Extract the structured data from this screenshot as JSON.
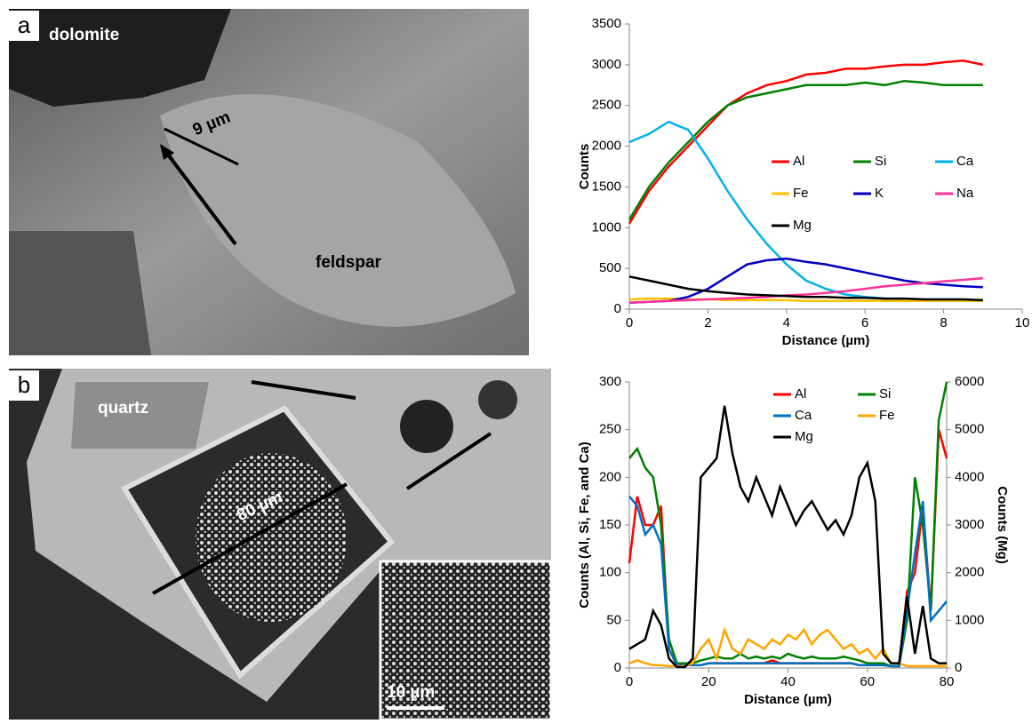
{
  "micrographs": [
    {
      "label": "a",
      "annotations": [
        "dolomite",
        "9 µm",
        "feldspar"
      ]
    },
    {
      "label": "b",
      "annotations": [
        "quartz",
        "80 µm",
        "10 µm"
      ]
    }
  ],
  "chart_data": [
    {
      "type": "line",
      "xlabel": "Distance (µm)",
      "ylabel": "Counts",
      "xlim": [
        0,
        10
      ],
      "xticks": [
        0,
        2,
        4,
        6,
        8,
        10
      ],
      "ylim": [
        0,
        3500
      ],
      "yticks": [
        0,
        500,
        1000,
        1500,
        2000,
        2500,
        3000,
        3500
      ],
      "legend_columns": 3,
      "x": [
        0,
        0.5,
        1,
        1.5,
        2,
        2.5,
        3,
        3.5,
        4,
        4.5,
        5,
        5.5,
        6,
        6.5,
        7,
        7.5,
        8,
        8.5,
        9
      ],
      "series": [
        {
          "name": "Al",
          "color": "#ff0000",
          "values": [
            1050,
            1450,
            1750,
            2000,
            2250,
            2500,
            2650,
            2750,
            2800,
            2880,
            2900,
            2950,
            2950,
            2980,
            3000,
            3000,
            3030,
            3050,
            3000
          ]
        },
        {
          "name": "Si",
          "color": "#008000",
          "values": [
            1100,
            1500,
            1800,
            2050,
            2300,
            2500,
            2600,
            2650,
            2700,
            2750,
            2750,
            2750,
            2780,
            2750,
            2800,
            2780,
            2750,
            2750,
            2750
          ]
        },
        {
          "name": "Ca",
          "color": "#00b0f0",
          "values": [
            2050,
            2150,
            2300,
            2200,
            1850,
            1450,
            1100,
            800,
            550,
            350,
            250,
            180,
            150,
            130,
            120,
            110,
            100,
            100,
            100
          ]
        },
        {
          "name": "Fe",
          "color": "#ffc000",
          "values": [
            120,
            130,
            130,
            120,
            120,
            110,
            110,
            110,
            110,
            100,
            100,
            100,
            100,
            100,
            100,
            100,
            100,
            100,
            100
          ]
        },
        {
          "name": "K",
          "color": "#0000c0",
          "values": [
            80,
            90,
            100,
            150,
            250,
            400,
            550,
            600,
            620,
            580,
            550,
            500,
            450,
            400,
            350,
            320,
            300,
            280,
            270
          ]
        },
        {
          "name": "Na",
          "color": "#ff3399",
          "values": [
            80,
            90,
            100,
            110,
            120,
            130,
            140,
            150,
            170,
            180,
            200,
            220,
            250,
            280,
            300,
            320,
            340,
            360,
            380
          ]
        },
        {
          "name": "Mg",
          "color": "#000000",
          "values": [
            400,
            350,
            300,
            250,
            220,
            200,
            180,
            170,
            160,
            150,
            150,
            140,
            140,
            130,
            130,
            120,
            120,
            120,
            110
          ]
        }
      ]
    },
    {
      "type": "line",
      "xlabel": "Distance (µm)",
      "ylabel": "Counts (Al, Si, Fe, and Ca)",
      "y2label": "Counts (Mg)",
      "xlim": [
        0,
        80
      ],
      "xticks": [
        0,
        20,
        40,
        60,
        80
      ],
      "ylim": [
        0,
        300
      ],
      "yticks": [
        0,
        50,
        100,
        150,
        200,
        250,
        300
      ],
      "y2lim": [
        0,
        6000
      ],
      "y2ticks": [
        0,
        1000,
        2000,
        3000,
        4000,
        5000,
        6000
      ],
      "legend_columns": 2,
      "x": [
        0,
        2,
        4,
        6,
        8,
        10,
        12,
        14,
        16,
        18,
        20,
        22,
        24,
        26,
        28,
        30,
        32,
        34,
        36,
        38,
        40,
        42,
        44,
        46,
        48,
        50,
        52,
        54,
        56,
        58,
        60,
        62,
        64,
        66,
        68,
        70,
        72,
        74,
        76,
        78,
        80
      ],
      "series": [
        {
          "name": "Al",
          "color": "#ff0000",
          "values": [
            110,
            180,
            150,
            150,
            170,
            20,
            3,
            3,
            3,
            3,
            5,
            5,
            5,
            5,
            5,
            5,
            5,
            5,
            8,
            5,
            5,
            5,
            5,
            5,
            5,
            5,
            5,
            5,
            5,
            3,
            3,
            3,
            3,
            2,
            2,
            80,
            100,
            170,
            60,
            250,
            220
          ]
        },
        {
          "name": "Si",
          "color": "#008000",
          "values": [
            220,
            230,
            210,
            200,
            150,
            30,
            5,
            5,
            5,
            8,
            10,
            12,
            10,
            10,
            15,
            10,
            12,
            10,
            12,
            10,
            15,
            12,
            10,
            12,
            10,
            10,
            10,
            12,
            10,
            8,
            5,
            5,
            5,
            2,
            2,
            50,
            200,
            150,
            60,
            260,
            300
          ]
        },
        {
          "name": "Ca",
          "color": "#0070c0",
          "values": [
            180,
            170,
            140,
            150,
            130,
            20,
            3,
            3,
            3,
            3,
            5,
            5,
            5,
            5,
            5,
            5,
            5,
            5,
            5,
            5,
            5,
            5,
            5,
            5,
            5,
            5,
            5,
            5,
            5,
            3,
            3,
            3,
            3,
            2,
            2,
            60,
            120,
            175,
            50,
            60,
            70
          ]
        },
        {
          "name": "Fe",
          "color": "#ffa500",
          "values": [
            5,
            8,
            5,
            3,
            3,
            2,
            2,
            2,
            5,
            20,
            30,
            10,
            40,
            20,
            15,
            30,
            25,
            20,
            30,
            25,
            35,
            30,
            40,
            25,
            35,
            40,
            30,
            20,
            25,
            15,
            20,
            10,
            20,
            5,
            5,
            2,
            2,
            2,
            2,
            2,
            2
          ]
        },
        {
          "name": "Mg",
          "color": "#000000",
          "axis": "y2",
          "values": [
            400,
            500,
            600,
            1200,
            900,
            200,
            20,
            20,
            200,
            4000,
            4200,
            4400,
            5500,
            4500,
            3800,
            3500,
            4000,
            3600,
            3200,
            3800,
            3400,
            3000,
            3300,
            3500,
            3200,
            2900,
            3100,
            2800,
            3200,
            4000,
            4300,
            3500,
            300,
            100,
            100,
            1500,
            300,
            1300,
            200,
            100,
            100
          ]
        }
      ]
    }
  ]
}
